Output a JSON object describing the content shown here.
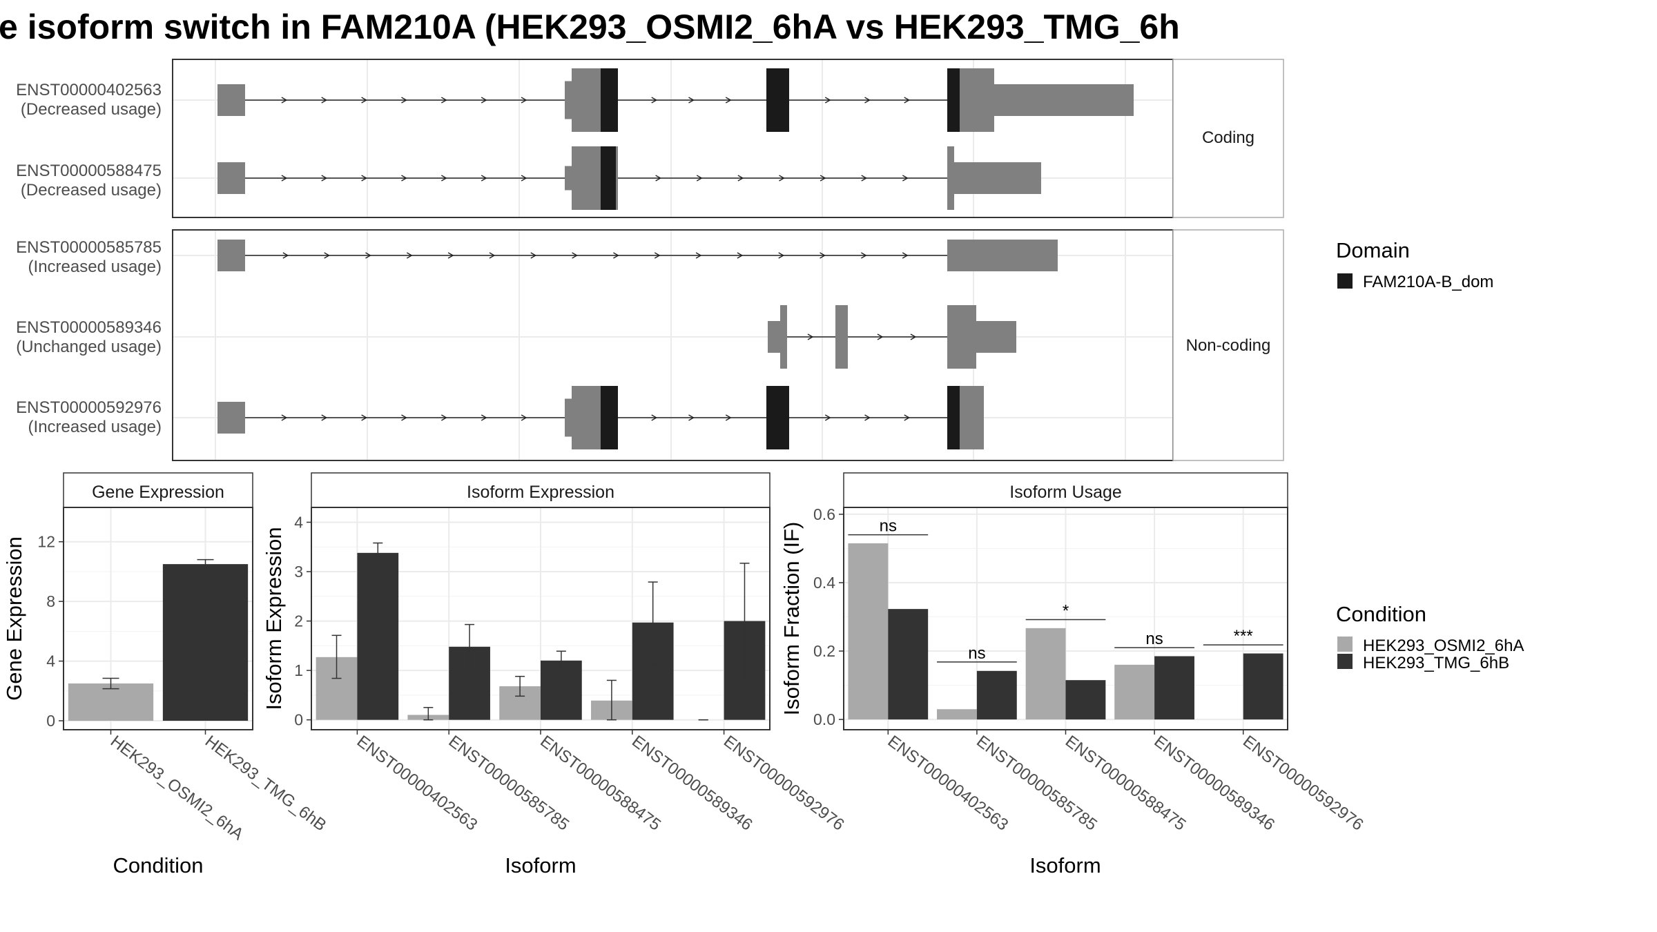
{
  "title": "e isoform switch in FAM210A (HEK293_OSMI2_6hA vs HEK293_TMG_6h",
  "colors": {
    "exon": "#808080",
    "domain": "#1a1a1a",
    "cond_a": "#a9a9a9",
    "cond_b": "#333333",
    "grid": "#ebebeb",
    "panel_border": "#333333",
    "strip_border": "#aaaaaa"
  },
  "structure": {
    "coding_label": "Coding",
    "noncoding_label": "Non-coding",
    "transcripts": [
      {
        "id": "ENST00000402563",
        "usage": "(Decreased usage)",
        "group": "coding"
      },
      {
        "id": "ENST00000588475",
        "usage": "(Decreased usage)",
        "group": "coding"
      },
      {
        "id": "ENST00000585785",
        "usage": "(Increased usage)",
        "group": "noncoding"
      },
      {
        "id": "ENST00000589346",
        "usage": "(Unchanged usage)",
        "group": "noncoding"
      },
      {
        "id": "ENST00000592976",
        "usage": "(Increased usage)",
        "group": "noncoding"
      }
    ]
  },
  "legend_domain": {
    "title": "Domain",
    "items": [
      "FAM210A-B_dom"
    ]
  },
  "legend_condition": {
    "title": "Condition",
    "items": [
      "HEK293_OSMI2_6hA",
      "HEK293_TMG_6hB"
    ]
  },
  "chart_data": [
    {
      "type": "bar",
      "title": "Gene Expression",
      "xlabel": "Condition",
      "ylabel": "Gene Expression",
      "ylim": [
        -0.6,
        14.3
      ],
      "yticks": [
        0,
        4,
        8,
        12
      ],
      "categories": [
        "HEK293_OSMI2_6hA",
        "HEK293_TMG_6hB"
      ],
      "values": [
        2.5,
        10.5
      ],
      "errors": [
        [
          2.15,
          2.85
        ],
        [
          10.2,
          10.8
        ]
      ]
    },
    {
      "type": "bar",
      "title": "Isoform Expression",
      "xlabel": "Isoform",
      "ylabel": "Isoform Expression",
      "ylim": [
        -0.2,
        4.3
      ],
      "yticks": [
        0,
        1,
        2,
        3,
        4
      ],
      "categories": [
        "ENST00000402563",
        "ENST00000585785",
        "ENST00000588475",
        "ENST00000589346",
        "ENST00000592976"
      ],
      "series": [
        {
          "name": "HEK293_OSMI2_6hA",
          "values": [
            1.27,
            0.1,
            0.68,
            0.39,
            0.0
          ],
          "errors": [
            [
              0.84,
              1.71
            ],
            [
              0.0,
              0.25
            ],
            [
              0.48,
              0.88
            ],
            [
              0.0,
              0.8
            ],
            [
              0.0,
              0.0
            ]
          ]
        },
        {
          "name": "HEK293_TMG_6hB",
          "values": [
            3.38,
            1.48,
            1.2,
            1.97,
            2.0
          ],
          "errors": [
            [
              3.17,
              3.58
            ],
            [
              1.02,
              1.93
            ],
            [
              1.01,
              1.39
            ],
            [
              1.14,
              2.79
            ],
            [
              0.84,
              3.17
            ]
          ]
        }
      ]
    },
    {
      "type": "bar",
      "title": "Isoform Usage",
      "xlabel": "Isoform",
      "ylabel": "Isoform Fraction (IF)",
      "ylim": [
        -0.03,
        0.62
      ],
      "yticks": [
        0.0,
        0.2,
        0.4,
        0.6
      ],
      "categories": [
        "ENST00000402563",
        "ENST00000585785",
        "ENST00000588475",
        "ENST00000589346",
        "ENST00000592976"
      ],
      "series": [
        {
          "name": "HEK293_OSMI2_6hA",
          "values": [
            0.515,
            0.03,
            0.267,
            0.16,
            0.0
          ]
        },
        {
          "name": "HEK293_TMG_6hB",
          "values": [
            0.323,
            0.142,
            0.115,
            0.185,
            0.193
          ]
        }
      ],
      "significance": [
        "ns",
        "ns",
        "*",
        "ns",
        "***"
      ],
      "sig_y": [
        0.54,
        0.168,
        0.292,
        0.21,
        0.218
      ]
    }
  ]
}
